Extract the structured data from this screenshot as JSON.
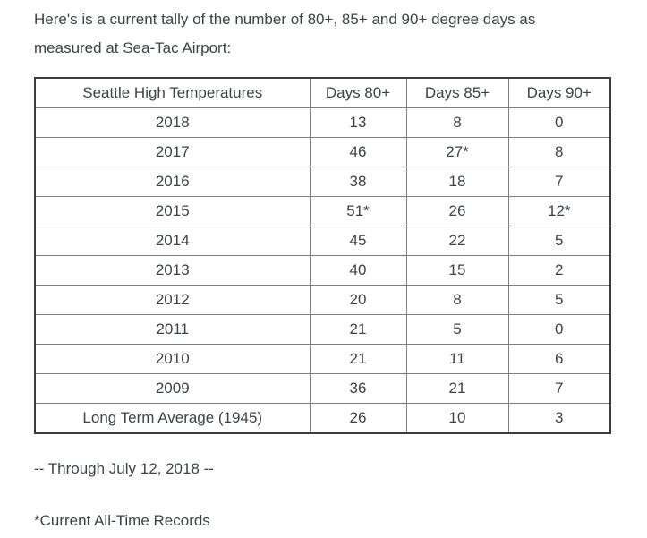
{
  "intro": {
    "line1": "Here's is a current tally of the number of 80+, 85+ and 90+ degree days as",
    "line2": "measured at Sea-Tac Airport:"
  },
  "table": {
    "headers": [
      "Seattle High Temperatures",
      "Days 80+",
      "Days 85+",
      "Days 90+"
    ],
    "rows": [
      {
        "cells": [
          "2018",
          "13",
          "8",
          "0"
        ]
      },
      {
        "cells": [
          "2017",
          "46",
          "27*",
          "8"
        ]
      },
      {
        "cells": [
          "2016",
          "38",
          "18",
          "7"
        ]
      },
      {
        "cells": [
          "2015",
          "51*",
          "26",
          "12*"
        ]
      },
      {
        "cells": [
          "2014",
          "45",
          "22",
          "5"
        ]
      },
      {
        "cells": [
          "2013",
          "40",
          "15",
          "2"
        ]
      },
      {
        "cells": [
          "2012",
          "20",
          "8",
          "5"
        ]
      },
      {
        "cells": [
          "2011",
          "21",
          "5",
          "0"
        ]
      },
      {
        "cells": [
          "2010",
          "21",
          "11",
          "6"
        ]
      },
      {
        "cells": [
          "2009",
          "36",
          "21",
          "7"
        ]
      },
      {
        "cells": [
          "Long Term Average (1945)",
          "26",
          "10",
          "3"
        ]
      }
    ]
  },
  "footer": {
    "through_note": "-- Through July 12, 2018 --",
    "records_note": "*Current All-Time Records"
  },
  "colors": {
    "background": "#ffffff",
    "text": "#3e4347",
    "outer_border": "#3c3c3c",
    "inner_border": "#7e7e7e"
  }
}
